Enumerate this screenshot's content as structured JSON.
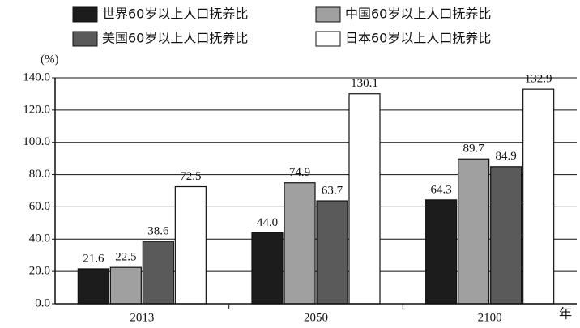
{
  "chart_data": {
    "type": "bar",
    "y_label": "(%)",
    "x_label": "年",
    "categories": [
      "2013",
      "2050",
      "2100"
    ],
    "series": [
      {
        "name": "世界60岁以上人口抚养比",
        "color": "#1c1c1c",
        "values": [
          21.6,
          44.0,
          64.3
        ],
        "value_labels": [
          "21.6",
          "44.0",
          "64.3"
        ]
      },
      {
        "name": "中国60岁以上人口抚养比",
        "color": "#a0a0a0",
        "values": [
          22.5,
          74.9,
          89.7
        ]
      },
      {
        "name": "美国60岁以上人口抚养比",
        "color": "#5a5a5a",
        "values": [
          38.6,
          63.7,
          84.9
        ]
      },
      {
        "name": "日本60岁以上人口抚养比",
        "color": "#ffffff",
        "values": [
          72.5,
          130.1,
          132.9
        ]
      }
    ],
    "ylim": [
      0,
      140
    ],
    "yticks": [
      {
        "value": 0,
        "label": "0.0"
      },
      {
        "value": 20,
        "label": "20.0"
      },
      {
        "value": 40,
        "label": "40.0"
      },
      {
        "value": 60,
        "label": "60.0"
      },
      {
        "value": 80,
        "label": "80.0"
      },
      {
        "value": 100,
        "label": "100.0"
      },
      {
        "value": 120,
        "label": "120.0"
      },
      {
        "value": 140,
        "label": "140.0"
      }
    ],
    "grid": true,
    "legend": "top"
  }
}
